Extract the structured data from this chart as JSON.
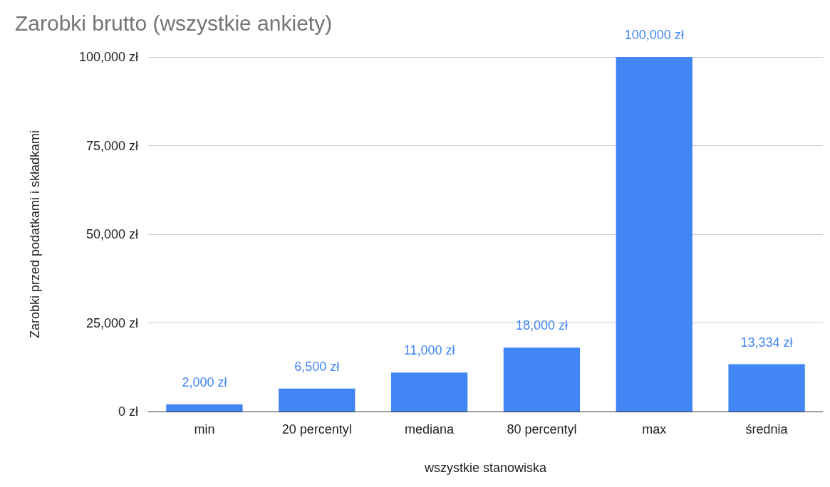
{
  "chart_data": {
    "type": "bar",
    "title": "Zarobki brutto (wszystkie ankiety)",
    "xlabel": "wszystkie stanowiska",
    "ylabel": "Zarobki przed podatkami i składkami",
    "categories": [
      "min",
      "20 percentyl",
      "mediana",
      "80 percentyl",
      "max",
      "średnia"
    ],
    "values": [
      2000,
      6500,
      11000,
      18000,
      100000,
      13334
    ],
    "value_labels": [
      "2,000 zł",
      "6,500 zł",
      "11,000 zł",
      "18,000 zł",
      "100,000 zł",
      "13,334 zł"
    ],
    "color": "#4285f4",
    "ylim": [
      0,
      100000
    ],
    "yticks": [
      {
        "value": 0,
        "label": "0 zł"
      },
      {
        "value": 25000,
        "label": "25,000 zł"
      },
      {
        "value": 50000,
        "label": "50,000 zł"
      },
      {
        "value": 75000,
        "label": "75,000 zł"
      },
      {
        "value": 100000,
        "label": "100,000 zł"
      }
    ],
    "grid": true
  }
}
